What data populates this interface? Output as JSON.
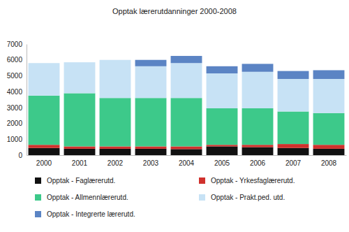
{
  "chart_data": {
    "type": "bar",
    "stacked": true,
    "title": "Opptak lærerutdanninger 2000-2008",
    "categories": [
      "2000",
      "2001",
      "2002",
      "2003",
      "2004",
      "2005",
      "2006",
      "2007",
      "2008"
    ],
    "series": [
      {
        "name": "Opptak - Faglærerutd.",
        "color": "#111111",
        "values": [
          450,
          400,
          400,
          400,
          380,
          550,
          500,
          450,
          400
        ]
      },
      {
        "name": "Opptak - Yrkesfaglærerutd.",
        "color": "#d0312d",
        "values": [
          200,
          150,
          150,
          150,
          170,
          100,
          150,
          250,
          250
        ]
      },
      {
        "name": "Opptak - Allmennlærerutd.",
        "color": "#3dc98a",
        "values": [
          3100,
          3350,
          3050,
          3050,
          3050,
          2300,
          2300,
          2050,
          2000
        ]
      },
      {
        "name": "Opptak - Prakt.ped. utd.",
        "color": "#c7e2f5",
        "values": [
          2050,
          1950,
          2400,
          2000,
          2200,
          2200,
          2300,
          2050,
          2150
        ]
      },
      {
        "name": "Opptak - Integrerte lærerutd.",
        "color": "#5b84c4",
        "values": [
          0,
          0,
          0,
          400,
          450,
          450,
          500,
          500,
          550
        ]
      }
    ],
    "ylim": [
      0,
      7000
    ],
    "yticks": [
      0,
      1000,
      2000,
      3000,
      4000,
      5000,
      6000,
      7000
    ],
    "grid": false,
    "legend": "bottom"
  }
}
